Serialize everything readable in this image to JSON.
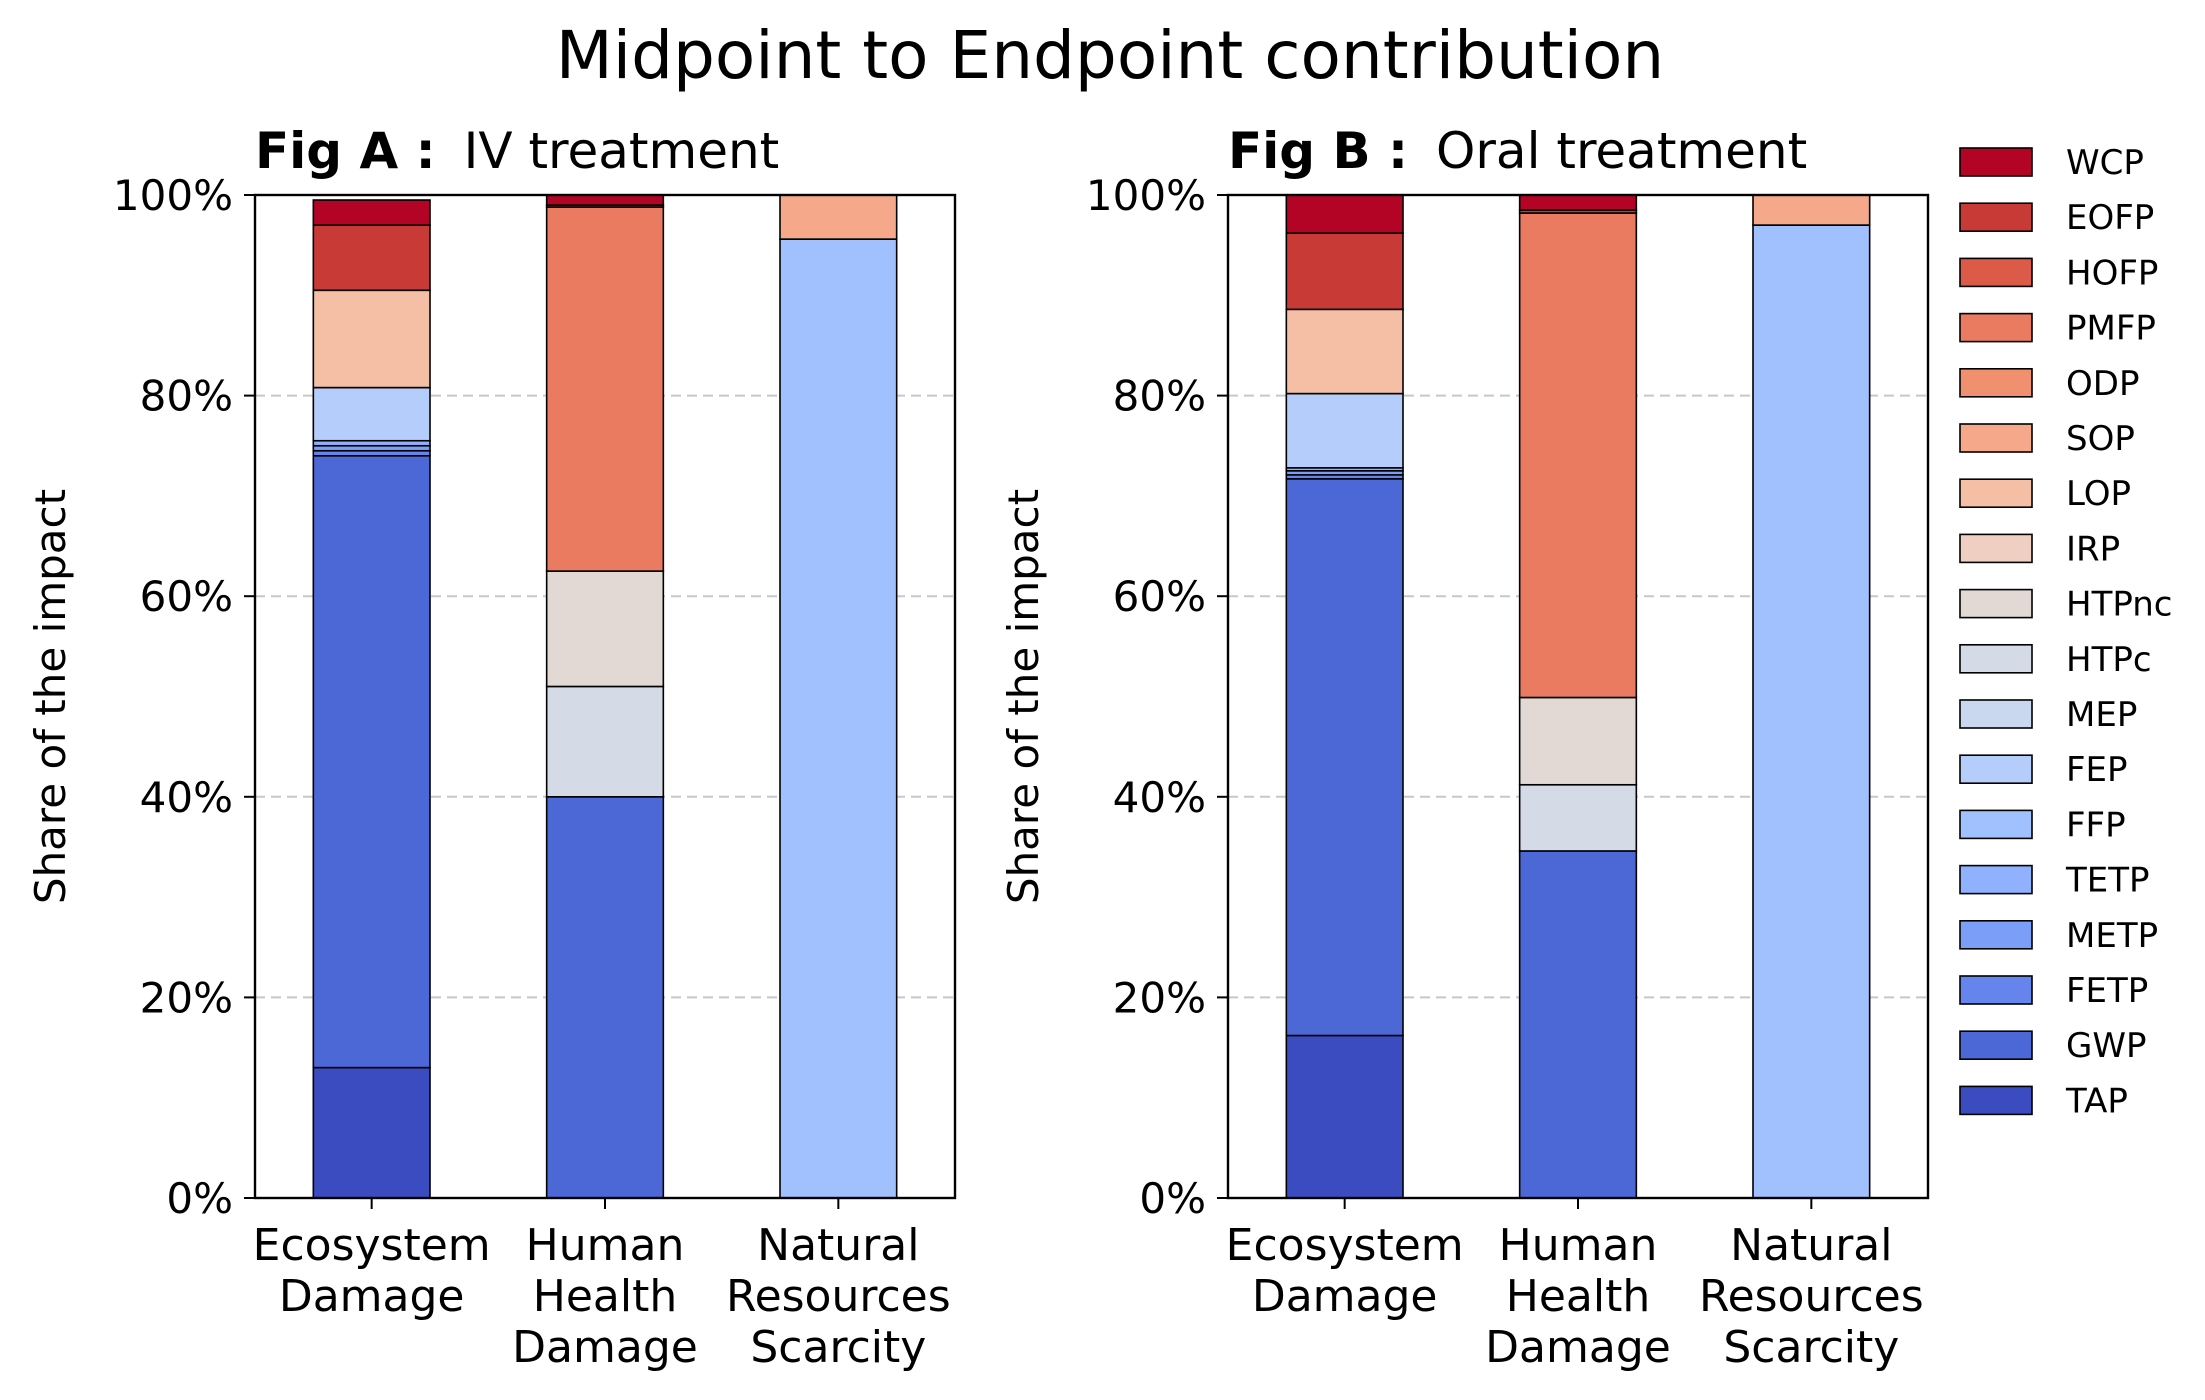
{
  "suptitle": "Midpoint to Endpoint contribution",
  "chart_data": [
    {
      "type": "bar",
      "stacked": true,
      "panel_label": "Fig A :",
      "title": "IV treatment",
      "ylabel": "Share of the impact",
      "ylim": [
        0,
        100
      ],
      "y_ticks": [
        "0%",
        "20%",
        "40%",
        "60%",
        "80%",
        "100%"
      ],
      "grid": "y dashed",
      "categories": [
        [
          "Ecosystem",
          "Damage"
        ],
        [
          "Human",
          "Health",
          "Damage"
        ],
        [
          "Natural",
          "Resources",
          "Scarcity"
        ]
      ],
      "series": [
        {
          "name": "TAP",
          "values": [
            13.0,
            0,
            0
          ]
        },
        {
          "name": "GWP",
          "values": [
            61.0,
            40.0,
            0
          ]
        },
        {
          "name": "FETP",
          "values": [
            0.5,
            0,
            0
          ]
        },
        {
          "name": "METP",
          "values": [
            0.5,
            0,
            0
          ]
        },
        {
          "name": "TETP",
          "values": [
            0.5,
            0,
            0
          ]
        },
        {
          "name": "FFP",
          "values": [
            0,
            0,
            95.6
          ]
        },
        {
          "name": "FEP",
          "values": [
            5.3,
            0,
            0
          ]
        },
        {
          "name": "MEP",
          "values": [
            0,
            0,
            0
          ]
        },
        {
          "name": "HTPc",
          "values": [
            0,
            11.0,
            0
          ]
        },
        {
          "name": "HTPnc",
          "values": [
            0,
            11.5,
            0
          ]
        },
        {
          "name": "IRP",
          "values": [
            0,
            0,
            0
          ]
        },
        {
          "name": "LOP",
          "values": [
            9.7,
            0,
            0
          ]
        },
        {
          "name": "SOP",
          "values": [
            0,
            0,
            4.4
          ]
        },
        {
          "name": "ODP",
          "values": [
            0,
            0,
            0
          ]
        },
        {
          "name": "PMFP",
          "values": [
            0,
            36.3,
            0
          ]
        },
        {
          "name": "HOFP",
          "values": [
            0,
            0,
            0
          ]
        },
        {
          "name": "EOFP",
          "values": [
            6.5,
            0.2,
            0
          ]
        },
        {
          "name": "WCP",
          "values": [
            2.5,
            1.0,
            0
          ]
        }
      ]
    },
    {
      "type": "bar",
      "stacked": true,
      "panel_label": "Fig B :",
      "title": "Oral treatment",
      "ylabel": "Share of the impact",
      "ylim": [
        0,
        100
      ],
      "y_ticks": [
        "0%",
        "20%",
        "40%",
        "60%",
        "80%",
        "100%"
      ],
      "grid": "y dashed",
      "categories": [
        [
          "Ecosystem",
          "Damage"
        ],
        [
          "Human",
          "Health",
          "Damage"
        ],
        [
          "Natural",
          "Resources",
          "Scarcity"
        ]
      ],
      "series": [
        {
          "name": "TAP",
          "values": [
            16.2,
            0,
            0
          ]
        },
        {
          "name": "GWP",
          "values": [
            55.5,
            34.6,
            0
          ]
        },
        {
          "name": "FETP",
          "values": [
            0.4,
            0,
            0
          ]
        },
        {
          "name": "METP",
          "values": [
            0.4,
            0,
            0
          ]
        },
        {
          "name": "TETP",
          "values": [
            0.3,
            0,
            0
          ]
        },
        {
          "name": "FFP",
          "values": [
            0,
            0,
            97.0
          ]
        },
        {
          "name": "FEP",
          "values": [
            7.4,
            0,
            0
          ]
        },
        {
          "name": "MEP",
          "values": [
            0,
            0,
            0
          ]
        },
        {
          "name": "HTPc",
          "values": [
            0,
            6.6,
            0
          ]
        },
        {
          "name": "HTPnc",
          "values": [
            0,
            8.7,
            0
          ]
        },
        {
          "name": "IRP",
          "values": [
            0,
            0,
            0
          ]
        },
        {
          "name": "LOP",
          "values": [
            8.4,
            0,
            0
          ]
        },
        {
          "name": "SOP",
          "values": [
            0,
            0,
            3.0
          ]
        },
        {
          "name": "ODP",
          "values": [
            0,
            0,
            0
          ]
        },
        {
          "name": "PMFP",
          "values": [
            0,
            48.3,
            0
          ]
        },
        {
          "name": "HOFP",
          "values": [
            0,
            0,
            0
          ]
        },
        {
          "name": "EOFP",
          "values": [
            7.6,
            0.3,
            0
          ]
        },
        {
          "name": "WCP",
          "values": [
            3.8,
            1.5,
            0
          ]
        }
      ]
    }
  ],
  "legend": {
    "placement": "right",
    "entries": [
      {
        "name": "WCP",
        "color": "#b40426"
      },
      {
        "name": "EOFP",
        "color": "#c83a35"
      },
      {
        "name": "HOFP",
        "color": "#db5a48"
      },
      {
        "name": "PMFP",
        "color": "#ea7b60"
      },
      {
        "name": "ODP",
        "color": "#f1906f"
      },
      {
        "name": "SOP",
        "color": "#f5a88a"
      },
      {
        "name": "LOP",
        "color": "#f5bfa5"
      },
      {
        "name": "IRP",
        "color": "#f0cfc3"
      },
      {
        "name": "HTPnc",
        "color": "#e2d9d4"
      },
      {
        "name": "HTPc",
        "color": "#d4dbe6"
      },
      {
        "name": "MEP",
        "color": "#c9d8ef"
      },
      {
        "name": "FEP",
        "color": "#b4cdfa"
      },
      {
        "name": "FFP",
        "color": "#a1c0fe"
      },
      {
        "name": "TETP",
        "color": "#8fb1fe"
      },
      {
        "name": "METP",
        "color": "#7b9ff9"
      },
      {
        "name": "FETP",
        "color": "#6585ec"
      },
      {
        "name": "GWP",
        "color": "#4c68d7"
      },
      {
        "name": "TAP",
        "color": "#3b4cc0"
      }
    ]
  }
}
